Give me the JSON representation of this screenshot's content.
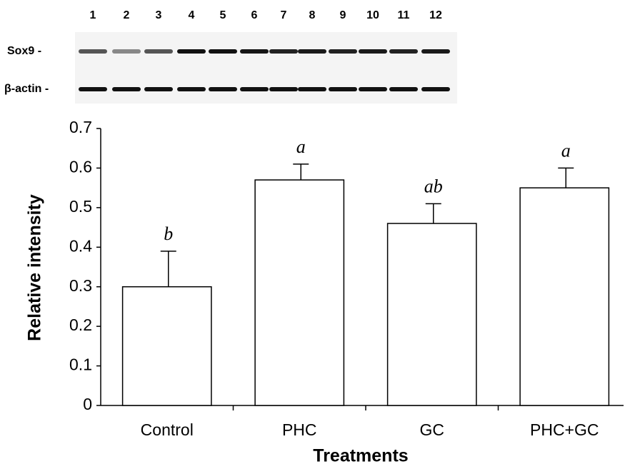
{
  "blot": {
    "lanes": [
      "1",
      "2",
      "3",
      "4",
      "5",
      "6",
      "7",
      "8",
      "9",
      "10",
      "11",
      "12"
    ],
    "rows": [
      "Sox9 -",
      "β-actin -"
    ]
  },
  "chart_data": {
    "type": "bar",
    "x_label": "Treatments",
    "y_label": "Relative intensity",
    "categories": [
      "Control",
      "PHC",
      "GC",
      "PHC+GC"
    ],
    "values": [
      0.3,
      0.57,
      0.46,
      0.55
    ],
    "errors": [
      0.09,
      0.04,
      0.05,
      0.05
    ],
    "significance": [
      "b",
      "a",
      "ab",
      "a"
    ],
    "color": "#ffffff",
    "ylim": [
      0,
      0.7
    ],
    "yticks": [
      0,
      0.1,
      0.2,
      0.3,
      0.4,
      0.5,
      0.6,
      0.7
    ],
    "grid": false
  }
}
